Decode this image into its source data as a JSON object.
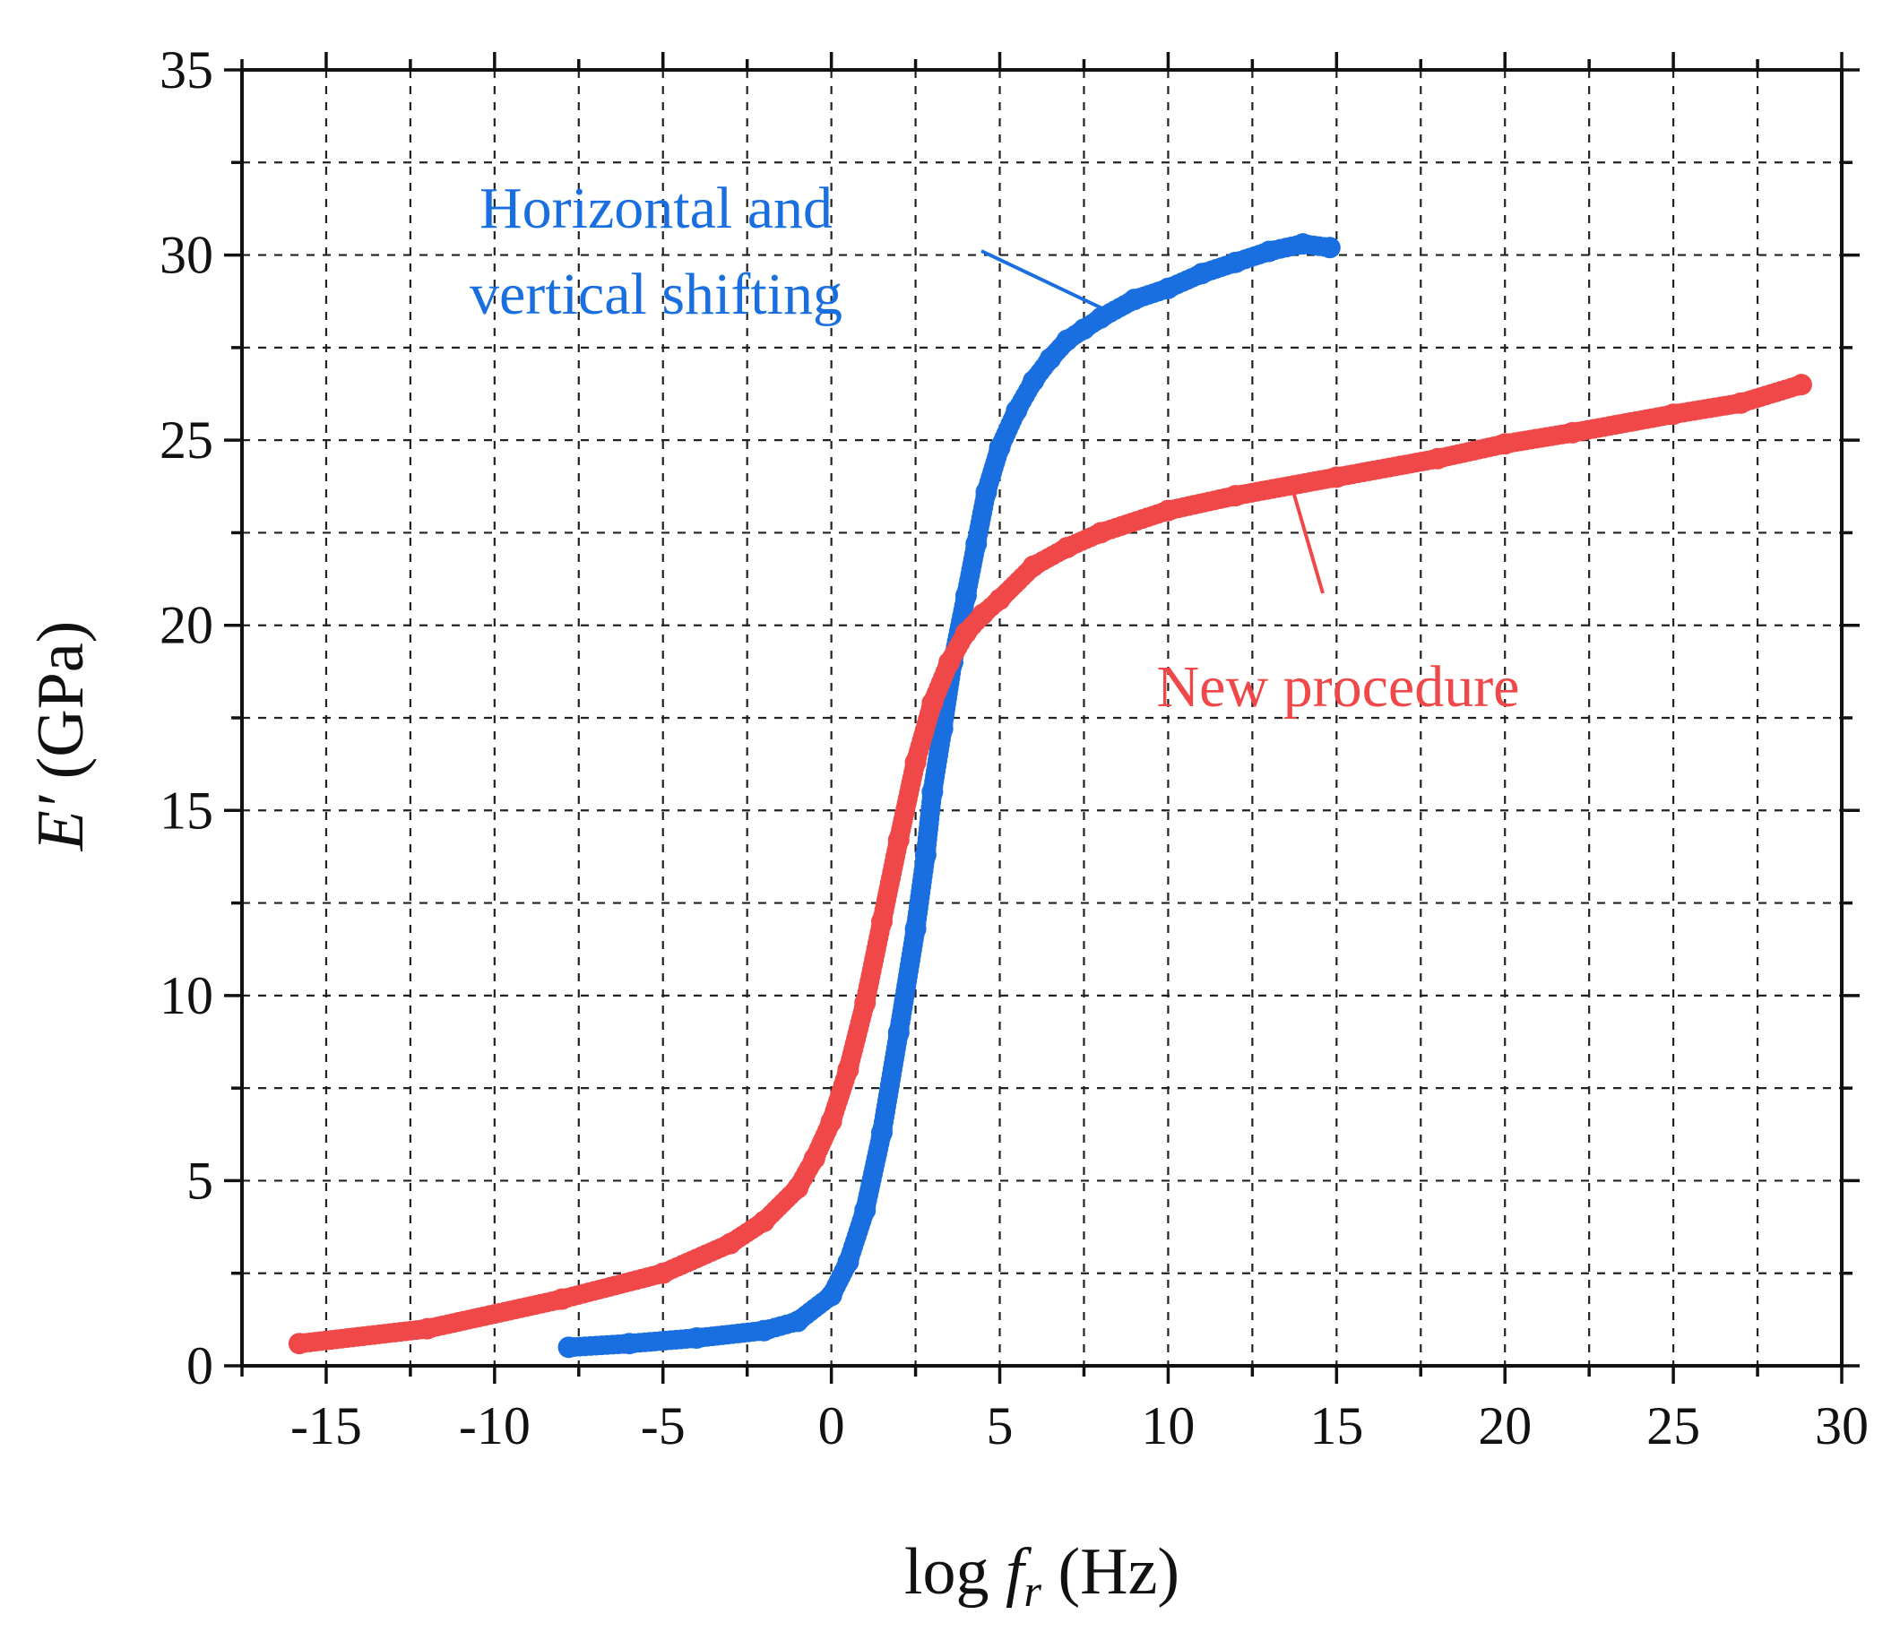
{
  "chart_data": {
    "type": "scatter",
    "title": "",
    "xlabel": {
      "prefix": "log ",
      "italic": "f",
      "sub": "r",
      "suffix": " (Hz)"
    },
    "ylabel": {
      "italic": "E′",
      "suffix": " (GPa)"
    },
    "xlim": [
      -17.5,
      30
    ],
    "ylim": [
      0,
      35
    ],
    "xticks": [
      -15,
      -10,
      -5,
      0,
      5,
      10,
      15,
      20,
      25,
      30
    ],
    "xtick_labels": [
      "-15",
      "-10",
      "-5",
      "0",
      "5",
      "10",
      "15",
      "20",
      "25",
      "30"
    ],
    "yticks": [
      0,
      5,
      10,
      15,
      20,
      25,
      30,
      35
    ],
    "ytick_labels": [
      "0",
      "5",
      "10",
      "15",
      "20",
      "25",
      "30",
      "35"
    ],
    "grid": true,
    "series": [
      {
        "name": "Horizontal and vertical shifting",
        "label_lines": [
          "Horizontal  and",
          "vertical  shifting"
        ],
        "color": "#1a6fe0",
        "x": [
          -7.8,
          -6,
          -4,
          -2,
          -1,
          0,
          0.5,
          1,
          1.5,
          2,
          2.5,
          2.8,
          3,
          3.3,
          3.6,
          4,
          4.3,
          4.6,
          5,
          5.5,
          6,
          6.5,
          7,
          7.5,
          8,
          9,
          10,
          11,
          12,
          13,
          14,
          14.8
        ],
        "y": [
          0.5,
          0.6,
          0.75,
          0.95,
          1.2,
          1.9,
          2.8,
          4.2,
          6.3,
          9.0,
          11.8,
          13.8,
          15.5,
          17.2,
          19.0,
          20.8,
          22.2,
          23.6,
          24.8,
          25.8,
          26.6,
          27.2,
          27.7,
          28.0,
          28.3,
          28.8,
          29.1,
          29.5,
          29.8,
          30.1,
          30.3,
          30.2
        ]
      },
      {
        "name": "New procedure",
        "label_lines": [
          "New procedure"
        ],
        "color": "#f04848",
        "x": [
          -15.8,
          -12,
          -8,
          -5,
          -3,
          -2,
          -1,
          -0.5,
          0,
          0.5,
          1,
          1.5,
          2,
          2.5,
          3,
          3.5,
          4,
          4.5,
          5,
          6,
          7,
          8,
          10,
          12,
          15,
          18,
          20,
          22,
          25,
          27,
          28.8
        ],
        "y": [
          0.6,
          1.0,
          1.8,
          2.5,
          3.3,
          3.9,
          4.8,
          5.6,
          6.6,
          8.0,
          9.8,
          12.0,
          14.2,
          16.3,
          17.9,
          19.0,
          19.8,
          20.3,
          20.7,
          21.6,
          22.1,
          22.5,
          23.1,
          23.5,
          24.0,
          24.5,
          24.9,
          25.2,
          25.7,
          26.0,
          26.5
        ]
      }
    ]
  }
}
